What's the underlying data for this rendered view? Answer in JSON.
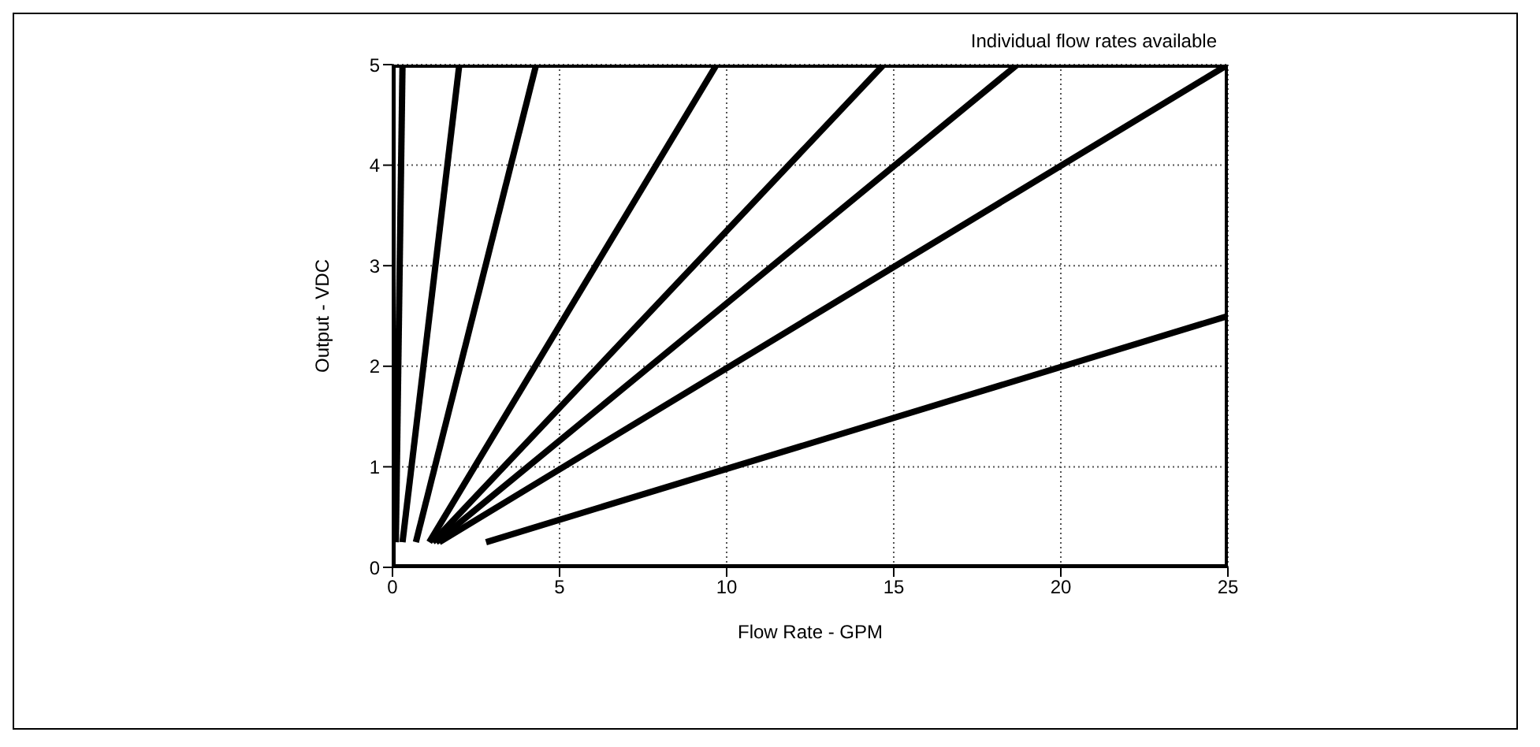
{
  "chart_data": {
    "type": "line",
    "annotations": [
      "Individual flow rates available"
    ],
    "xlabel": "Flow Rate - GPM",
    "ylabel": "Output - VDC",
    "xlim": [
      0,
      25
    ],
    "xticks": [
      0,
      5,
      10,
      15,
      20,
      25
    ],
    "ylim": [
      0,
      5
    ],
    "yticks": [
      0,
      1,
      2,
      3,
      4,
      5
    ],
    "grid": true,
    "line_style": "solid",
    "marker": "none",
    "series": [
      {
        "color": "#000000",
        "x": [
          0.1,
          0.3
        ],
        "values": [
          0.25,
          5
        ]
      },
      {
        "color": "#000000",
        "x": [
          0.3,
          2
        ],
        "values": [
          0.25,
          5
        ]
      },
      {
        "color": "#000000",
        "x": [
          0.7,
          4.3
        ],
        "values": [
          0.25,
          5
        ]
      },
      {
        "color": "#000000",
        "x": [
          1.1,
          9.7
        ],
        "values": [
          0.25,
          5
        ]
      },
      {
        "color": "#000000",
        "x": [
          1.2,
          14.7
        ],
        "values": [
          0.25,
          5
        ]
      },
      {
        "color": "#000000",
        "x": [
          1.3,
          18.7
        ],
        "values": [
          0.25,
          5
        ]
      },
      {
        "color": "#000000",
        "x": [
          1.4,
          25
        ],
        "values": [
          0.25,
          5
        ]
      },
      {
        "color": "#000000",
        "x": [
          2.8,
          25
        ],
        "values": [
          0.25,
          2.5
        ]
      }
    ]
  }
}
